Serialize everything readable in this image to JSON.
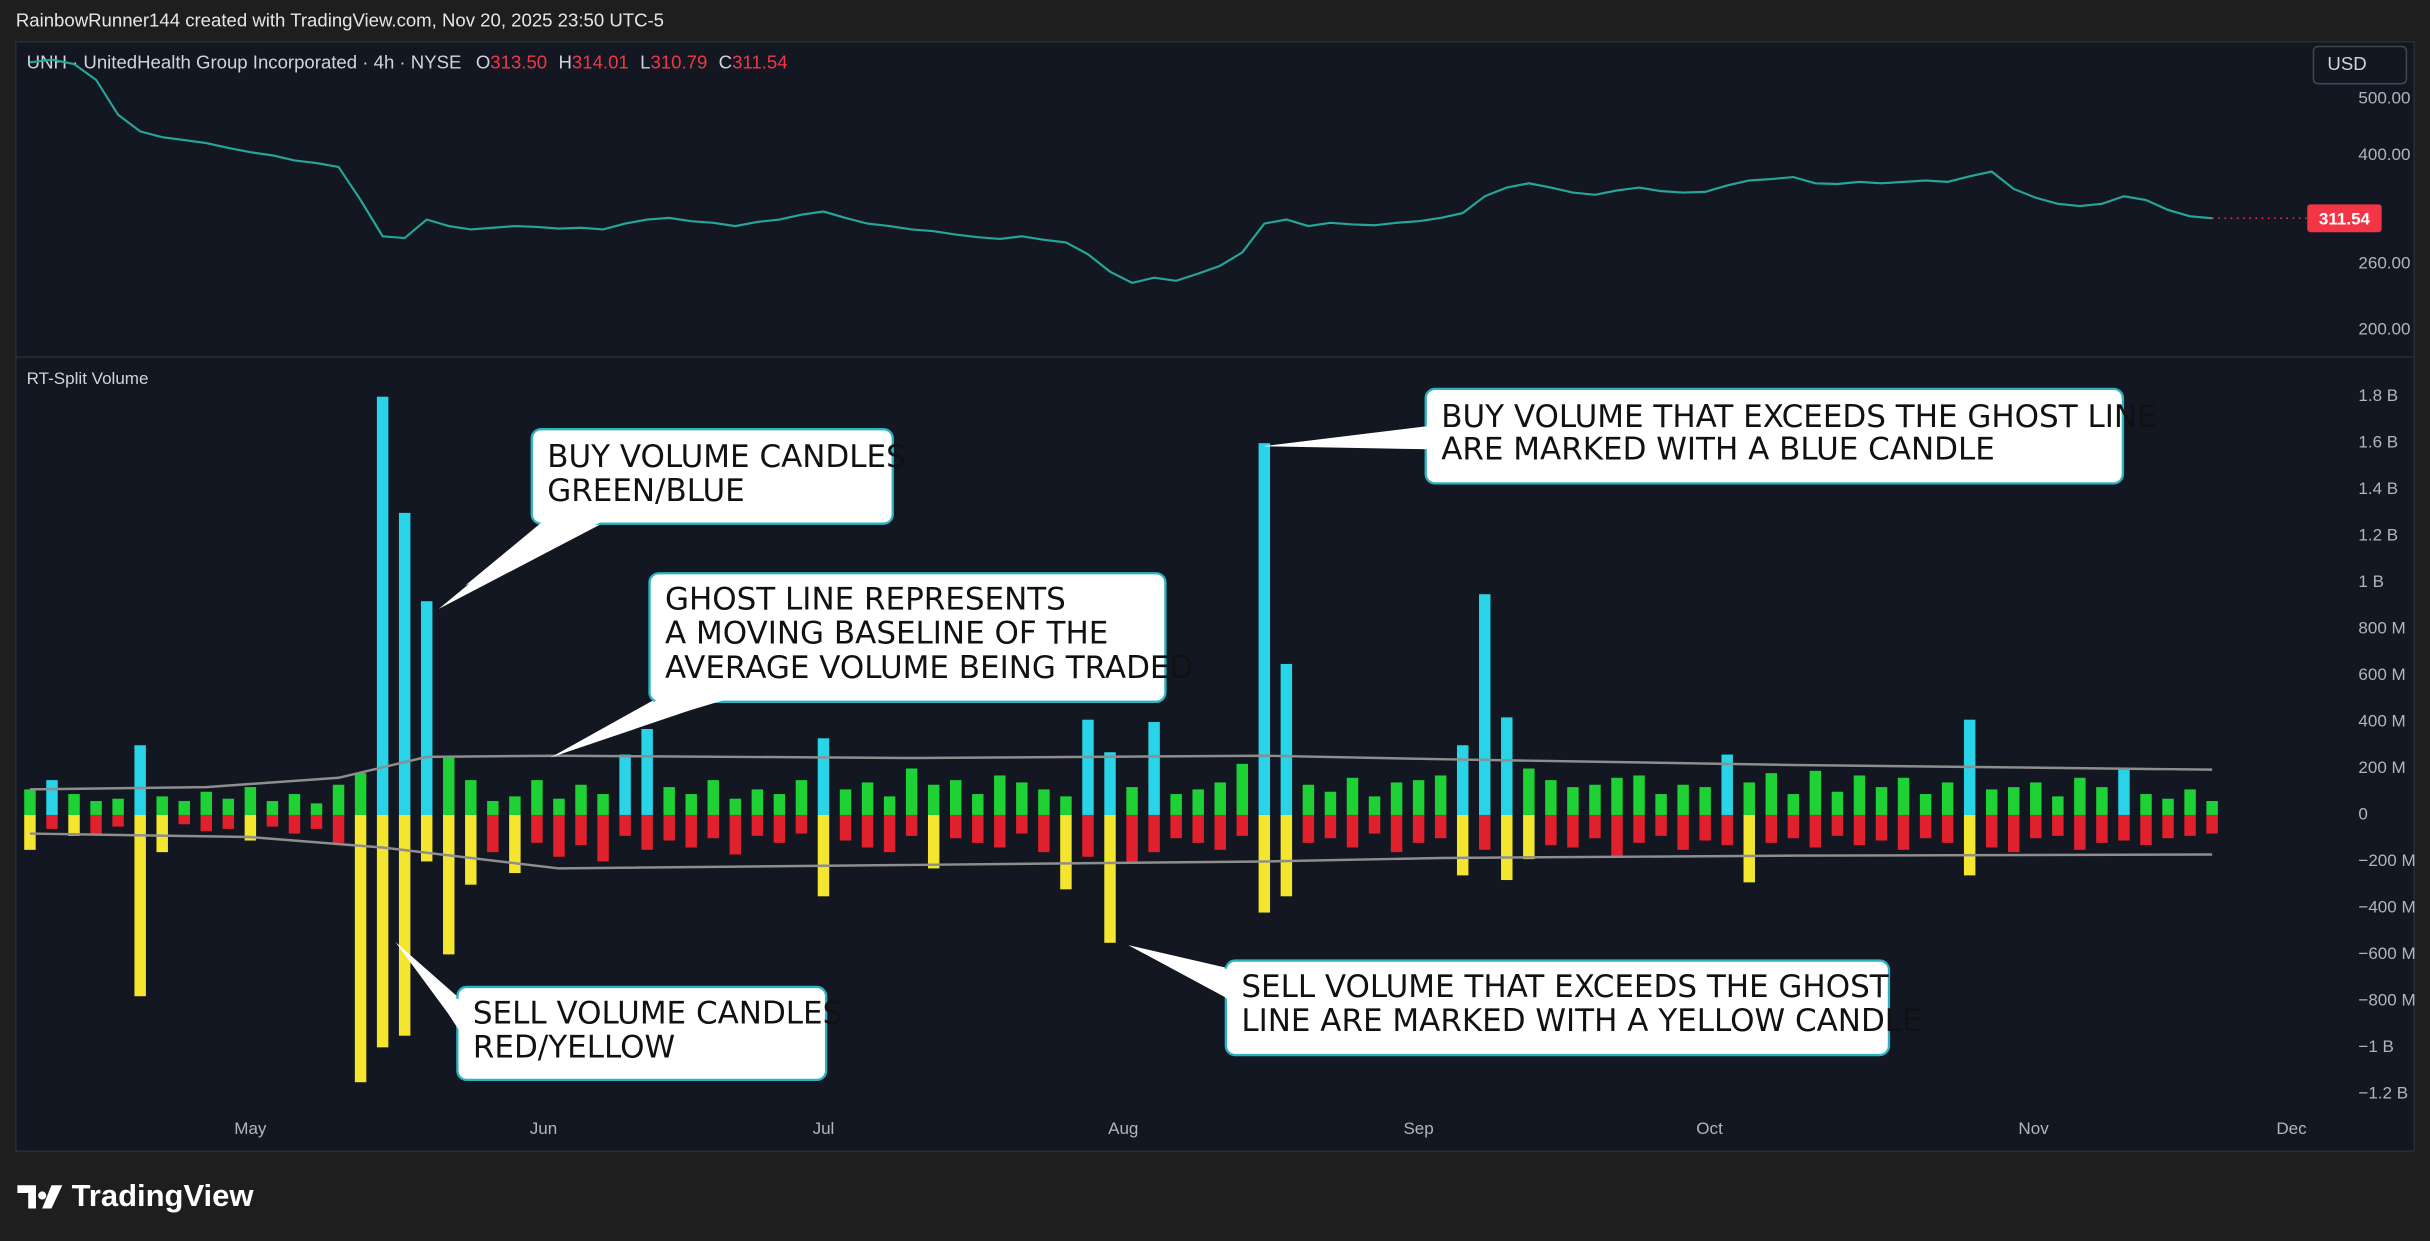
{
  "header": {
    "credit": "RainbowRunner144 created with TradingView.com, Nov 20, 2025 23:50 UTC-5"
  },
  "legend": {
    "symbol": "UNH · UnitedHealth Group Incorporated · 4h · NYSE",
    "ohlc": [
      {
        "key": "O",
        "value": "313.50"
      },
      {
        "key": "H",
        "value": "314.01"
      },
      {
        "key": "L",
        "value": "310.79"
      },
      {
        "key": "C",
        "value": "311.54"
      }
    ]
  },
  "currency": "USD",
  "indicator_title": "RT-Split Volume",
  "logo": "TradingView",
  "chart_data": [
    {
      "type": "line",
      "log_scale": true,
      "grid": false,
      "xlim": [
        -0.5,
        104.3
      ],
      "ylim": [
        180,
        628
      ],
      "yticks": [
        {
          "value": 500,
          "label": "500.00"
        },
        {
          "value": 400,
          "label": "400.00"
        },
        {
          "value": 260,
          "label": "260.00"
        },
        {
          "value": 200,
          "label": "200.00"
        }
      ],
      "series": [
        {
          "color": "#26a69a",
          "values": [
            579,
            585,
            575,
            540,
            470,
            440,
            430,
            425,
            420,
            412,
            405,
            400,
            392,
            388,
            382,
            335,
            290,
            288,
            310,
            302,
            298,
            300,
            302,
            301,
            299,
            300,
            298,
            305,
            310,
            312,
            308,
            306,
            302,
            307,
            310,
            316,
            320,
            312,
            305,
            302,
            298,
            296,
            292,
            289,
            287,
            290,
            286,
            283,
            270,
            252,
            241,
            246,
            243,
            250,
            258,
            272,
            305,
            310,
            302,
            306,
            304,
            303,
            306,
            308,
            312,
            318,
            340,
            352,
            358,
            352,
            345,
            342,
            348,
            352,
            347,
            345,
            346,
            355,
            362,
            364,
            367,
            358,
            357,
            360,
            358,
            360,
            362,
            360,
            368,
            375,
            350,
            338,
            330,
            327,
            330,
            340,
            335,
            322,
            314,
            311.54
          ]
        }
      ],
      "last_value_color": "#f23645"
    },
    {
      "type": "bar",
      "grid": false,
      "xlim": [
        -0.5,
        104.3
      ],
      "xticks": [
        {
          "value": 10,
          "label": "May"
        },
        {
          "value": 23.3,
          "label": "Jun"
        },
        {
          "value": 36,
          "label": "Jul"
        },
        {
          "value": 49.6,
          "label": "Aug"
        },
        {
          "value": 63,
          "label": "Sep"
        },
        {
          "value": 76.2,
          "label": "Oct"
        },
        {
          "value": 90.9,
          "label": "Nov"
        },
        {
          "value": 102.6,
          "label": "Dec"
        }
      ],
      "ylim": [
        -1260000000,
        1967000000
      ],
      "yticks": [
        {
          "value": 1800000000,
          "label": "1.8 B"
        },
        {
          "value": 1600000000,
          "label": "1.6 B"
        },
        {
          "value": 1400000000,
          "label": "1.4 B"
        },
        {
          "value": 1200000000,
          "label": "1.2 B"
        },
        {
          "value": 1000000000,
          "label": "1 B"
        },
        {
          "value": 800000000,
          "label": "800 M"
        },
        {
          "value": 600000000,
          "label": "600 M"
        },
        {
          "value": 400000000,
          "label": "400 M"
        },
        {
          "value": 200000000,
          "label": "200 M"
        },
        0,
        {
          "value": -200000000,
          "label": "−200 M"
        },
        {
          "value": -400000000,
          "label": "−400 M"
        },
        {
          "value": -600000000,
          "label": "−600 M"
        },
        {
          "value": -800000000,
          "label": "−800 M"
        },
        {
          "value": -1000000000,
          "label": "−1 B"
        },
        {
          "value": -1200000000,
          "label": "−1.2 B"
        }
      ],
      "series": [
        {
          "color": "#1ed134",
          "highlight_color": "#29d3e8",
          "values": [
            110000000,
            150000000,
            90000000,
            60000000,
            70000000,
            300000000,
            80000000,
            60000000,
            100000000,
            70000000,
            120000000,
            60000000,
            90000000,
            50000000,
            130000000,
            180000000,
            1800000000,
            1300000000,
            920000000,
            250000000,
            150000000,
            60000000,
            80000000,
            150000000,
            70000000,
            130000000,
            90000000,
            260000000,
            370000000,
            120000000,
            90000000,
            150000000,
            70000000,
            110000000,
            90000000,
            150000000,
            330000000,
            110000000,
            140000000,
            80000000,
            200000000,
            130000000,
            150000000,
            90000000,
            170000000,
            140000000,
            110000000,
            80000000,
            410000000,
            270000000,
            120000000,
            400000000,
            90000000,
            110000000,
            140000000,
            220000000,
            1600000000,
            650000000,
            130000000,
            100000000,
            160000000,
            80000000,
            140000000,
            150000000,
            170000000,
            300000000,
            950000000,
            420000000,
            200000000,
            150000000,
            120000000,
            130000000,
            160000000,
            170000000,
            90000000,
            130000000,
            120000000,
            260000000,
            140000000,
            180000000,
            90000000,
            190000000,
            100000000,
            170000000,
            120000000,
            160000000,
            90000000,
            140000000,
            410000000,
            110000000,
            120000000,
            140000000,
            80000000,
            160000000,
            120000000,
            200000000,
            90000000,
            70000000,
            110000000,
            60000000
          ]
        },
        {
          "color": "#e0202c",
          "highlight_color": "#f4e62e",
          "values": [
            -150000000,
            -60000000,
            -90000000,
            -80000000,
            -50000000,
            -780000000,
            -160000000,
            -40000000,
            -70000000,
            -60000000,
            -110000000,
            -50000000,
            -80000000,
            -60000000,
            -120000000,
            -1150000000,
            -1000000000,
            -950000000,
            -200000000,
            -600000000,
            -300000000,
            -160000000,
            -250000000,
            -120000000,
            -180000000,
            -130000000,
            -200000000,
            -90000000,
            -150000000,
            -110000000,
            -140000000,
            -100000000,
            -170000000,
            -90000000,
            -120000000,
            -80000000,
            -350000000,
            -110000000,
            -140000000,
            -160000000,
            -90000000,
            -230000000,
            -100000000,
            -120000000,
            -140000000,
            -80000000,
            -160000000,
            -320000000,
            -180000000,
            -550000000,
            -200000000,
            -160000000,
            -100000000,
            -120000000,
            -150000000,
            -90000000,
            -420000000,
            -350000000,
            -120000000,
            -100000000,
            -140000000,
            -80000000,
            -160000000,
            -120000000,
            -100000000,
            -260000000,
            -150000000,
            -280000000,
            -190000000,
            -130000000,
            -140000000,
            -100000000,
            -180000000,
            -120000000,
            -90000000,
            -150000000,
            -110000000,
            -130000000,
            -290000000,
            -120000000,
            -100000000,
            -140000000,
            -90000000,
            -130000000,
            -110000000,
            -150000000,
            -100000000,
            -120000000,
            -260000000,
            -140000000,
            -160000000,
            -100000000,
            -90000000,
            -150000000,
            -120000000,
            -110000000,
            -130000000,
            -100000000,
            -90000000,
            -80000000
          ]
        }
      ],
      "ghost_lines": [
        {
          "color": "#8e8e8e",
          "x": [
            0,
            8,
            14,
            18,
            24,
            40,
            56,
            64,
            80,
            99
          ],
          "values": [
            110000000,
            120000000,
            160000000,
            250000000,
            255000000,
            245000000,
            255000000,
            240000000,
            215000000,
            195000000
          ]
        },
        {
          "color": "#8e8e8e",
          "x": [
            0,
            10,
            16,
            24,
            40,
            56,
            64,
            80,
            99
          ],
          "values": [
            -80000000,
            -95000000,
            -140000000,
            -230000000,
            -215000000,
            -200000000,
            -185000000,
            -175000000,
            -170000000
          ]
        }
      ]
    }
  ],
  "annotations": [
    {
      "lines": [
        "BUY VOLUME CANDLES",
        "GREEN/BLUE"
      ]
    },
    {
      "lines": [
        "GHOST LINE REPRESENTS",
        "A MOVING BASELINE OF THE",
        "AVERAGE VOLUME BEING TRADED"
      ]
    },
    {
      "lines": [
        "BUY VOLUME THAT EXCEEDS THE GHOST LINE",
        "ARE MARKED WITH A BLUE CANDLE"
      ]
    },
    {
      "lines": [
        "SELL VOLUME CANDLES",
        "RED/YELLOW"
      ]
    },
    {
      "lines": [
        "SELL VOLUME THAT EXCEEDS THE GHOST",
        "LINE ARE MARKED WITH A YELLOW CANDLE"
      ]
    }
  ]
}
